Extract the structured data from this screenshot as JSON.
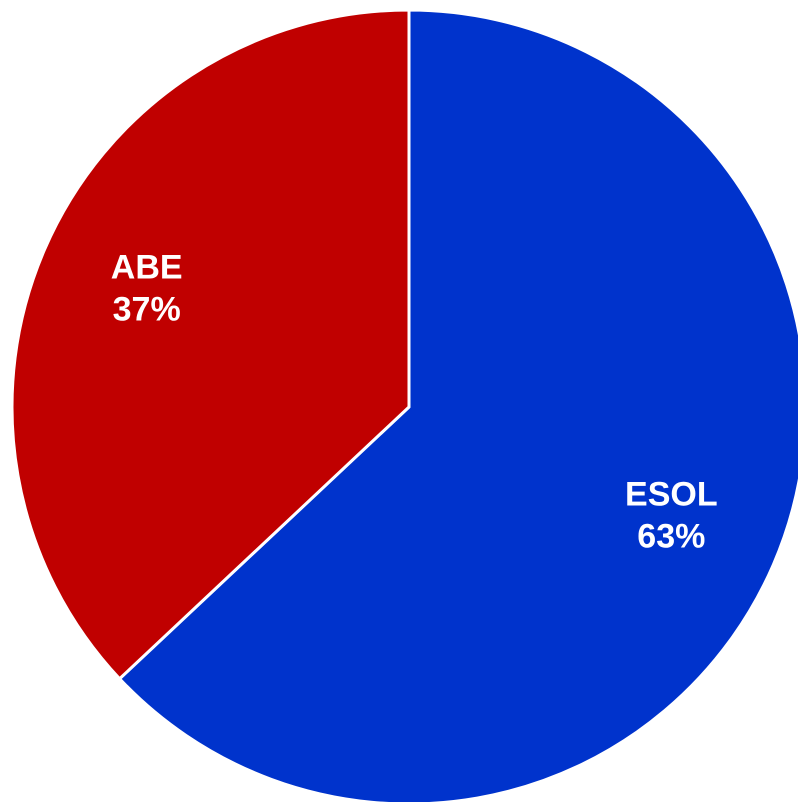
{
  "chart_data": {
    "type": "pie",
    "categories": [
      "ESOL",
      "ABE"
    ],
    "values": [
      63,
      37
    ],
    "value_labels": [
      "63%",
      "37%"
    ],
    "colors": [
      "#0033CC",
      "#C00000"
    ],
    "start_angle": "12 o'clock",
    "direction": "clockwise",
    "legend": "none",
    "slice_border_color": "#ffffff"
  }
}
